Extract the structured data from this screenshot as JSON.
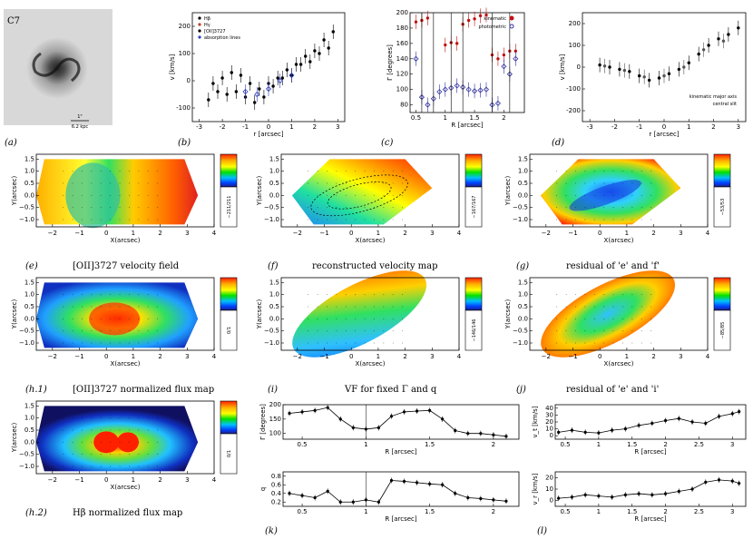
{
  "photo": {
    "label": "C7",
    "scale_top": "1\"",
    "scale_bottom": "6.2 kpc"
  },
  "panel_labels": {
    "a": "(a)",
    "b": "(b)",
    "c": "(c)",
    "d": "(d)",
    "e": "(e)",
    "f": "(f)",
    "g": "(g)",
    "h1": "(h.1)",
    "h2": "(h.2)",
    "i": "(i)",
    "j": "(j)",
    "k": "(k)",
    "l": "(l)"
  },
  "captions": {
    "e": "[OII]3727 velocity field",
    "f": "reconstructed velocity map",
    "g": "residual of 'e' and 'f'",
    "h1": "[OII]3727 normalized flux map",
    "h2": "Hβ normalized flux map",
    "i": "VF for fixed Γ and q",
    "j": "residual of 'e' and 'i'"
  },
  "axes": {
    "v_label": "v [km/s]",
    "r_label": "r [arcsec]",
    "R_label": "R [arcsec]",
    "gamma_label": "Γ [degrees]",
    "q_label": "q",
    "v_t_label": "v_t [km/s]",
    "v_r_label": "v_r [km/s]",
    "x_label": "X(arcsec)",
    "y_label": "Y(arcsec)",
    "xticks": [
      "−2",
      "−1",
      "0",
      "1",
      "2",
      "3",
      "4"
    ],
    "yticks": [
      "1.5",
      "1.0",
      "0.5",
      "0.0",
      "−0.5",
      "−1.0"
    ]
  },
  "legend_b": [
    "Hβ",
    "Hγ",
    "[OII]3727",
    "absorption lines"
  ],
  "legend_c": [
    "kinematic",
    "photometric"
  ],
  "legend_d": [
    "kinematic major axis",
    "central slit"
  ],
  "colorbar_ranges": {
    "e": "−211/211",
    "f": "−167/167",
    "g": "−53/53",
    "h1": "0/1",
    "i": "−146/146",
    "j": "−85/85",
    "h2": "0/1"
  },
  "chart_data": [
    {
      "id": "b",
      "type": "scatter",
      "title": "",
      "xlabel": "r [arcsec]",
      "ylabel": "v [km/s]",
      "xlim": [
        -3.3,
        3.3
      ],
      "ylim": [
        -150,
        250
      ],
      "xticks": [
        -3,
        -2,
        -1,
        0,
        1,
        2,
        3
      ],
      "yticks": [
        -100,
        0,
        100,
        200
      ],
      "series": [
        {
          "name": "Hβ",
          "x": [
            -2.6,
            -2.2,
            -1.8,
            -1.4,
            -1.0,
            -0.6,
            -0.2,
            0.2,
            0.6,
            1.0,
            1.4,
            1.8,
            2.2,
            2.6
          ],
          "y": [
            -70,
            -40,
            -50,
            -40,
            -60,
            -80,
            -60,
            -20,
            10,
            20,
            60,
            70,
            100,
            120
          ]
        },
        {
          "name": "[OII]3727",
          "x": [
            -2.4,
            -2.0,
            -1.6,
            -1.2,
            -0.8,
            -0.4,
            0.0,
            0.4,
            0.8,
            1.2,
            1.6,
            2.0,
            2.4,
            2.8
          ],
          "y": [
            -10,
            10,
            30,
            20,
            -10,
            -30,
            -10,
            10,
            40,
            60,
            90,
            110,
            150,
            180
          ]
        },
        {
          "name": "absorption lines",
          "x": [
            -1.0,
            -0.5,
            0.0,
            0.5,
            1.0
          ],
          "y": [
            -40,
            -50,
            -30,
            0,
            20
          ]
        }
      ]
    },
    {
      "id": "c",
      "type": "scatter",
      "title": "",
      "xlabel": "R [arcsec]",
      "ylabel": "Γ [degrees]",
      "xlim": [
        0.4,
        2.35
      ],
      "ylim": [
        70,
        200
      ],
      "xticks": [
        0.5,
        1.0,
        1.5,
        2.0
      ],
      "yticks": [
        80,
        100,
        120,
        140,
        160,
        180,
        200
      ],
      "series": [
        {
          "name": "kinematic",
          "x": [
            0.5,
            0.6,
            0.7,
            1.0,
            1.1,
            1.2,
            1.3,
            1.4,
            1.5,
            1.6,
            1.7,
            1.8,
            1.9,
            2.0,
            2.1,
            2.2
          ],
          "y": [
            188,
            190,
            193,
            158,
            161,
            160,
            185,
            190,
            192,
            196,
            197,
            145,
            140,
            145,
            150,
            150
          ]
        },
        {
          "name": "photometric",
          "x": [
            0.5,
            0.6,
            0.7,
            0.8,
            0.9,
            1.0,
            1.1,
            1.2,
            1.3,
            1.4,
            1.5,
            1.6,
            1.7,
            1.8,
            1.9,
            2.0,
            2.1,
            2.2
          ],
          "y": [
            140,
            90,
            80,
            88,
            97,
            100,
            102,
            105,
            103,
            100,
            98,
            99,
            100,
            80,
            82,
            130,
            120,
            140
          ]
        }
      ]
    },
    {
      "id": "d",
      "type": "scatter",
      "title": "",
      "xlabel": "r [arcsec]",
      "ylabel": "v [km/s]",
      "xlim": [
        -3.3,
        3.3
      ],
      "ylim": [
        -250,
        250
      ],
      "xticks": [
        -3,
        -2,
        -1,
        0,
        1,
        2,
        3
      ],
      "yticks": [
        -200,
        -100,
        0,
        100,
        200
      ],
      "series": [
        {
          "name": "kinematic major axis",
          "x": [
            -2.6,
            -2.2,
            -1.8,
            -1.4,
            -1.0,
            -0.6,
            -0.2,
            0.2,
            0.6,
            1.0,
            1.4,
            1.8,
            2.2,
            2.6,
            3.0
          ],
          "y": [
            10,
            0,
            -10,
            -20,
            -40,
            -60,
            -50,
            -30,
            -10,
            20,
            60,
            100,
            130,
            150,
            180
          ]
        },
        {
          "name": "central slit",
          "x": [
            -2.4,
            -1.6,
            -0.8,
            0.0,
            0.8,
            1.6,
            2.4
          ],
          "y": [
            5,
            -15,
            -45,
            -40,
            0,
            80,
            120
          ]
        }
      ]
    },
    {
      "id": "k_gamma",
      "type": "line",
      "xlabel": "R [arcsec]",
      "ylabel": "Γ [degrees]",
      "xlim": [
        0.35,
        2.2
      ],
      "ylim": [
        80,
        200
      ],
      "xticks": [
        0.5,
        1.0,
        1.5,
        2.0
      ],
      "yticks": [
        100,
        150,
        200
      ],
      "x": [
        0.4,
        0.5,
        0.6,
        0.7,
        0.8,
        0.9,
        1.0,
        1.1,
        1.2,
        1.3,
        1.4,
        1.5,
        1.6,
        1.7,
        1.8,
        1.9,
        2.0,
        2.1
      ],
      "y": [
        170,
        175,
        180,
        190,
        150,
        120,
        115,
        120,
        160,
        175,
        178,
        180,
        150,
        110,
        100,
        100,
        95,
        90
      ]
    },
    {
      "id": "k_q",
      "type": "line",
      "xlabel": "R [arcsec]",
      "ylabel": "q",
      "xlim": [
        0.35,
        2.2
      ],
      "ylim": [
        0.1,
        0.9
      ],
      "xticks": [
        0.5,
        1.0,
        1.5,
        2.0
      ],
      "yticks": [
        0.2,
        0.4,
        0.6,
        0.8
      ],
      "x": [
        0.4,
        0.5,
        0.6,
        0.7,
        0.8,
        0.9,
        1.0,
        1.1,
        1.2,
        1.3,
        1.4,
        1.5,
        1.6,
        1.7,
        1.8,
        1.9,
        2.0,
        2.1
      ],
      "y": [
        0.4,
        0.35,
        0.3,
        0.45,
        0.2,
        0.2,
        0.25,
        0.2,
        0.7,
        0.68,
        0.65,
        0.62,
        0.6,
        0.4,
        0.3,
        0.28,
        0.25,
        0.22
      ]
    },
    {
      "id": "l_vt",
      "type": "line",
      "xlabel": "R [arcsec]",
      "ylabel": "v_t [km/s]",
      "xlim": [
        0.35,
        3.2
      ],
      "ylim": [
        -5,
        45
      ],
      "xticks": [
        0.5,
        1.0,
        1.5,
        2.0,
        2.5,
        3.0
      ],
      "yticks": [
        0,
        10,
        20,
        30,
        40
      ],
      "x": [
        0.4,
        0.6,
        0.8,
        1.0,
        1.2,
        1.4,
        1.6,
        1.8,
        2.0,
        2.2,
        2.4,
        2.6,
        2.8,
        3.0,
        3.1
      ],
      "y": [
        5,
        8,
        5,
        4,
        8,
        10,
        15,
        18,
        22,
        25,
        20,
        18,
        28,
        32,
        35
      ]
    },
    {
      "id": "l_vr",
      "type": "line",
      "xlabel": "R [arcsec]",
      "ylabel": "v_r [km/s]",
      "xlim": [
        0.35,
        3.2
      ],
      "ylim": [
        -5,
        25
      ],
      "xticks": [
        0.5,
        1.0,
        1.5,
        2.0,
        2.5,
        3.0
      ],
      "yticks": [
        0,
        10,
        20
      ],
      "x": [
        0.4,
        0.6,
        0.8,
        1.0,
        1.2,
        1.4,
        1.6,
        1.8,
        2.0,
        2.2,
        2.4,
        2.6,
        2.8,
        3.0,
        3.1
      ],
      "y": [
        2,
        3,
        5,
        4,
        3,
        5,
        6,
        5,
        6,
        8,
        10,
        16,
        18,
        17,
        15
      ]
    }
  ]
}
